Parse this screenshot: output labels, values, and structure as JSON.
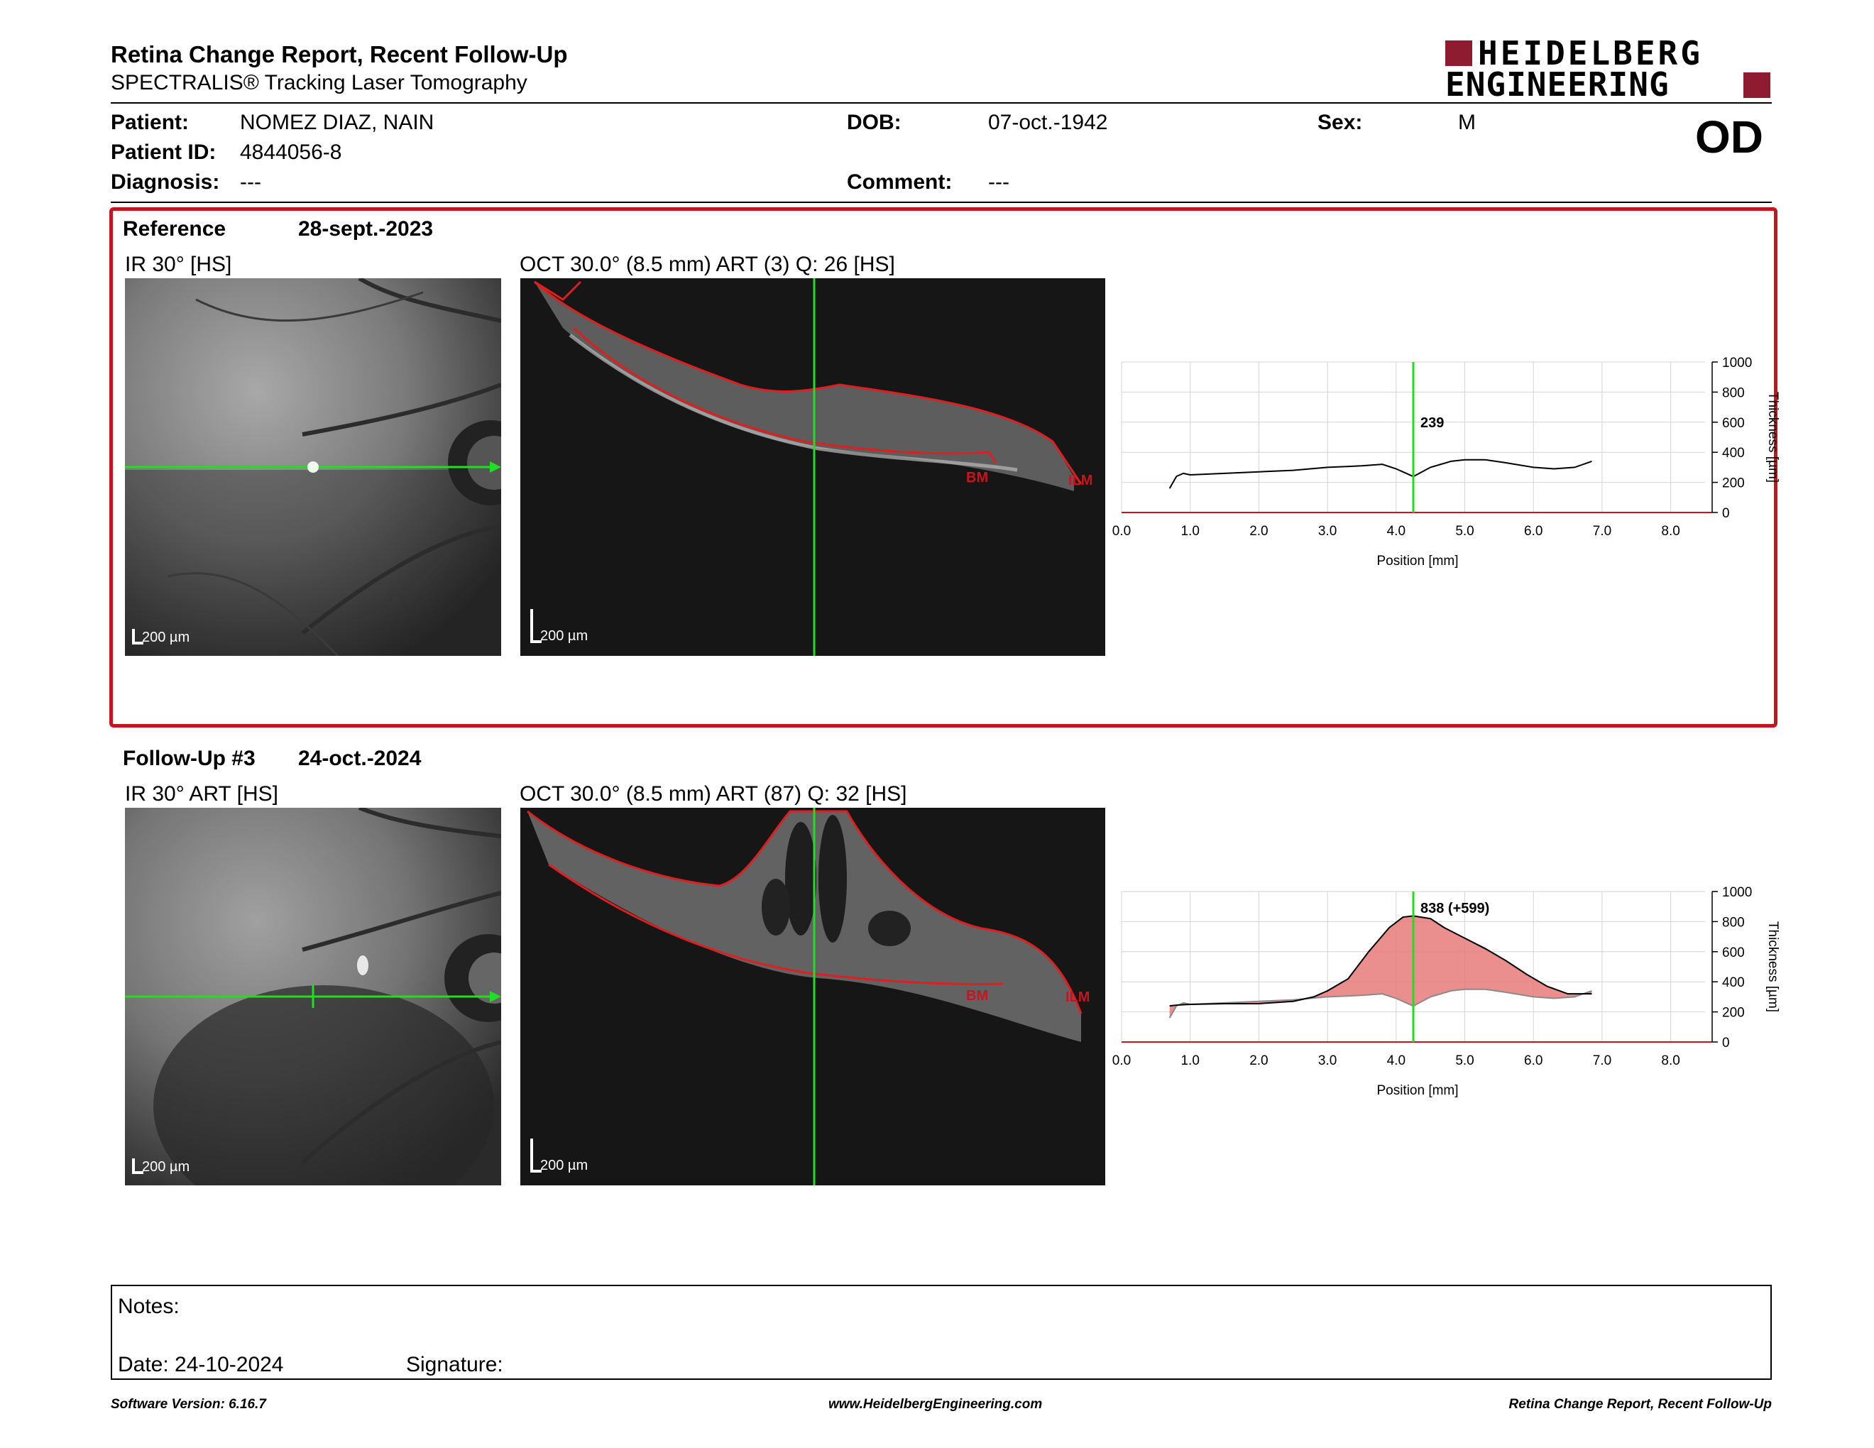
{
  "header": {
    "title": "Retina Change Report, Recent Follow-Up",
    "subtitle": "SPECTRALIS® Tracking Laser Tomography",
    "logo_line1": "HEIDELBERG",
    "logo_line2": "ENGINEERING",
    "eye": "OD"
  },
  "patient": {
    "name_label": "Patient:",
    "name": "NOMEZ DIAZ, NAIN",
    "id_label": "Patient ID:",
    "id": "4844056-8",
    "diagnosis_label": "Diagnosis:",
    "diagnosis": "---",
    "dob_label": "DOB:",
    "dob": "07-oct.-1942",
    "comment_label": "Comment:",
    "comment": "---",
    "sex_label": "Sex:",
    "sex": "M"
  },
  "reference": {
    "label": "Reference",
    "date": "28-sept.-2023",
    "ir_title": "IR 30° [HS]",
    "oct_title": "OCT 30.0° (8.5 mm) ART (3) Q: 26 [HS]",
    "ir_scale": "200 µm",
    "oct_scale": "200 µm",
    "bm_label": "BM",
    "ilm_label": "ILM"
  },
  "followup": {
    "label": "Follow-Up #3",
    "date": "24-oct.-2024",
    "ir_title": "IR 30° ART [HS]",
    "oct_title": "OCT 30.0° (8.5 mm) ART (87) Q: 32 [HS]",
    "ir_scale": "200 µm",
    "oct_scale": "200 µm",
    "bm_label": "BM",
    "ilm_label": "ILM"
  },
  "chart_data": [
    {
      "type": "line",
      "xlabel": "Position [mm]",
      "ylabel": "Thickness [µm]",
      "xlim": [
        0,
        8.5
      ],
      "ylim": [
        0,
        1000
      ],
      "xticks": [
        "0.0",
        "1.0",
        "2.0",
        "3.0",
        "4.0",
        "5.0",
        "6.0",
        "7.0",
        "8.0"
      ],
      "yticks": [
        "0",
        "200",
        "400",
        "600",
        "800",
        "1000"
      ],
      "grid": true,
      "cursor_x": 4.25,
      "cursor_label": "239",
      "series": [
        {
          "x": [
            0.7,
            0.8,
            0.9,
            1.0,
            1.5,
            2.0,
            2.5,
            3.0,
            3.5,
            3.8,
            4.0,
            4.25,
            4.5,
            4.8,
            5.0,
            5.3,
            5.6,
            6.0,
            6.3,
            6.6,
            6.85
          ],
          "y": [
            160,
            240,
            260,
            250,
            260,
            270,
            280,
            300,
            310,
            320,
            290,
            239,
            300,
            340,
            350,
            350,
            330,
            300,
            290,
            300,
            340
          ]
        }
      ]
    },
    {
      "type": "area",
      "xlabel": "Position [mm]",
      "ylabel": "Thickness [µm]",
      "xlim": [
        0,
        8.5
      ],
      "ylim": [
        0,
        1000
      ],
      "xticks": [
        "0.0",
        "1.0",
        "2.0",
        "3.0",
        "4.0",
        "5.0",
        "6.0",
        "7.0",
        "8.0"
      ],
      "yticks": [
        "0",
        "200",
        "400",
        "600",
        "800",
        "1000"
      ],
      "grid": true,
      "cursor_x": 4.25,
      "cursor_label": "838 (+599)",
      "series": [
        {
          "x": [
            0.7,
            0.8,
            1.0,
            1.5,
            2.0,
            2.5,
            2.8,
            3.0,
            3.3,
            3.6,
            3.9,
            4.1,
            4.25,
            4.5,
            4.7,
            5.0,
            5.3,
            5.6,
            5.9,
            6.2,
            6.5,
            6.85
          ],
          "y": [
            240,
            245,
            250,
            255,
            255,
            270,
            300,
            340,
            420,
            600,
            760,
            830,
            838,
            820,
            760,
            690,
            620,
            540,
            450,
            370,
            320,
            320
          ]
        },
        {
          "x": [
            0.7,
            0.8,
            0.9,
            1.0,
            1.5,
            2.0,
            2.5,
            3.0,
            3.5,
            3.8,
            4.0,
            4.25,
            4.5,
            4.8,
            5.0,
            5.3,
            5.6,
            6.0,
            6.3,
            6.6,
            6.85
          ],
          "y": [
            160,
            240,
            260,
            250,
            260,
            270,
            280,
            300,
            310,
            320,
            290,
            239,
            300,
            340,
            350,
            350,
            330,
            300,
            290,
            300,
            340
          ]
        }
      ]
    }
  ],
  "notes": {
    "label": "Notes:",
    "date_label": "Date: 24-10-2024",
    "signature_label": "Signature:"
  },
  "footer": {
    "software": "Software Version: 6.16.7",
    "website": "www.HeidelbergEngineering.com",
    "report": "Retina Change Report, Recent Follow-Up"
  }
}
